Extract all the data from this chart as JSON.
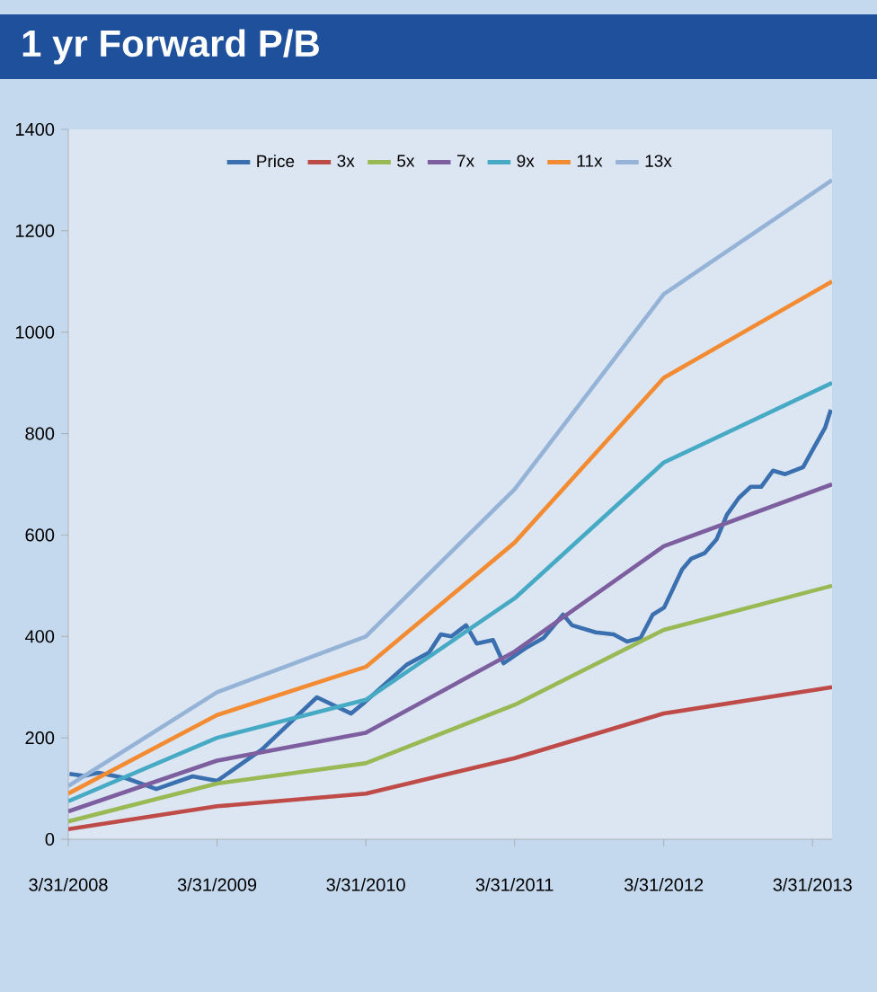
{
  "chart_data": {
    "type": "line",
    "title": "1 yr Forward P/B",
    "x": [
      "2008-03-31",
      "2009-03-31",
      "2010-03-31",
      "2011-03-31",
      "2012-03-31",
      "2013-05-18"
    ],
    "series": [
      {
        "name": "Price",
        "color": "#3a6fb0",
        "x": [
          "2008-04-03",
          "2008-05-08",
          "2008-06-13",
          "2008-08-21",
          "2008-11-02",
          "2009-01-30",
          "2009-03-31",
          "2009-07-19",
          "2009-12-01",
          "2010-02-23",
          "2010-03-28",
          "2010-07-09",
          "2010-09-02",
          "2010-10-01",
          "2010-10-27",
          "2010-12-02",
          "2010-12-28",
          "2011-02-06",
          "2011-03-04",
          "2011-05-01",
          "2011-06-10",
          "2011-07-28",
          "2011-08-19",
          "2011-10-16",
          "2011-11-29",
          "2012-01-01",
          "2012-02-03",
          "2012-03-04",
          "2012-04-01",
          "2012-05-15",
          "2012-06-06",
          "2012-07-09",
          "2012-08-08",
          "2012-09-02",
          "2012-10-01",
          "2012-10-30",
          "2012-11-25",
          "2012-12-24",
          "2013-01-23",
          "2013-03-08",
          "2013-04-01",
          "2013-05-01",
          "2013-05-15"
        ],
        "values": [
          129,
          125,
          131,
          120,
          99,
          124,
          115,
          177,
          280,
          248,
          270,
          344,
          368,
          404,
          400,
          422,
          386,
          393,
          347,
          379,
          397,
          443,
          422,
          408,
          404,
          390,
          397,
          443,
          457,
          532,
          553,
          564,
          592,
          640,
          673,
          695,
          695,
          727,
          720,
          734,
          769,
          812,
          847
        ]
      },
      {
        "name": "3x",
        "color": "#be4b48",
        "values": [
          20,
          65,
          90,
          160,
          248,
          300
        ]
      },
      {
        "name": "5x",
        "color": "#98b954",
        "values": [
          35,
          110,
          150,
          265,
          413,
          500
        ]
      },
      {
        "name": "7x",
        "color": "#7d5fa0",
        "values": [
          55,
          155,
          210,
          370,
          578,
          700
        ]
      },
      {
        "name": "9x",
        "color": "#46aac5",
        "values": [
          75,
          200,
          275,
          475,
          743,
          900
        ]
      },
      {
        "name": "11x",
        "color": "#f38b32",
        "values": [
          90,
          245,
          340,
          585,
          910,
          1100
        ]
      },
      {
        "name": "13x",
        "color": "#95b3d7",
        "values": [
          105,
          290,
          400,
          690,
          1075,
          1300
        ]
      }
    ],
    "xlim": [
      "2008-03-31",
      "2013-05-18"
    ],
    "xticks": [
      {
        "value": "2008-03-31",
        "label": "3/31/2008"
      },
      {
        "value": "2009-03-31",
        "label": "3/31/2009"
      },
      {
        "value": "2010-03-31",
        "label": "3/31/2010"
      },
      {
        "value": "2011-03-31",
        "label": "3/31/2011"
      },
      {
        "value": "2012-03-31",
        "label": "3/31/2012"
      },
      {
        "value": "2013-03-31",
        "label": "3/31/2013"
      }
    ],
    "ylim": [
      0,
      1400
    ],
    "yticks": [
      0,
      200,
      400,
      600,
      800,
      1000,
      1200,
      1400
    ],
    "legend": "top",
    "grid": false,
    "marker": "none",
    "line_style": "solid"
  }
}
